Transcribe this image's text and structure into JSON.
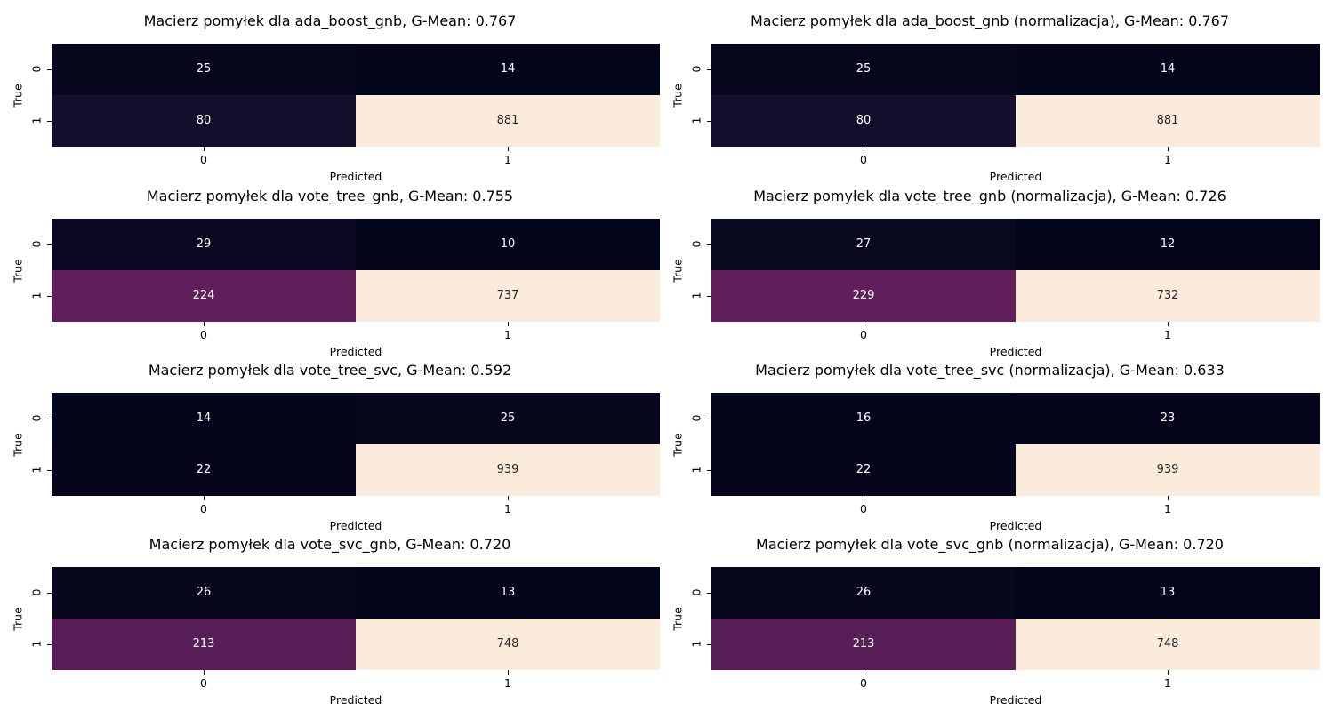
{
  "chart_data": [
    {
      "type": "heatmap",
      "title": "Macierz pomyłek dla ada_boost_gnb, G-Mean: 0.767",
      "xlabel": "Predicted",
      "ylabel": "True",
      "x_ticks": [
        "0",
        "1"
      ],
      "y_ticks": [
        "0",
        "1"
      ],
      "matrix": [
        [
          25,
          14
        ],
        [
          80,
          881
        ]
      ],
      "colormap": "rocket"
    },
    {
      "type": "heatmap",
      "title": "Macierz pomyłek dla ada_boost_gnb (normalizacja), G-Mean: 0.767",
      "xlabel": "Predicted",
      "ylabel": "True",
      "x_ticks": [
        "0",
        "1"
      ],
      "y_ticks": [
        "0",
        "1"
      ],
      "matrix": [
        [
          25,
          14
        ],
        [
          80,
          881
        ]
      ],
      "colormap": "rocket"
    },
    {
      "type": "heatmap",
      "title": "Macierz pomyłek dla vote_tree_gnb, G-Mean: 0.755",
      "xlabel": "Predicted",
      "ylabel": "True",
      "x_ticks": [
        "0",
        "1"
      ],
      "y_ticks": [
        "0",
        "1"
      ],
      "matrix": [
        [
          29,
          10
        ],
        [
          224,
          737
        ]
      ],
      "colormap": "rocket"
    },
    {
      "type": "heatmap",
      "title": "Macierz pomyłek dla vote_tree_gnb (normalizacja), G-Mean: 0.726",
      "xlabel": "Predicted",
      "ylabel": "True",
      "x_ticks": [
        "0",
        "1"
      ],
      "y_ticks": [
        "0",
        "1"
      ],
      "matrix": [
        [
          27,
          12
        ],
        [
          229,
          732
        ]
      ],
      "colormap": "rocket"
    },
    {
      "type": "heatmap",
      "title": "Macierz pomyłek dla vote_tree_svc, G-Mean: 0.592",
      "xlabel": "Predicted",
      "ylabel": "True",
      "x_ticks": [
        "0",
        "1"
      ],
      "y_ticks": [
        "0",
        "1"
      ],
      "matrix": [
        [
          14,
          25
        ],
        [
          22,
          939
        ]
      ],
      "colormap": "rocket"
    },
    {
      "type": "heatmap",
      "title": "Macierz pomyłek dla vote_tree_svc (normalizacja), G-Mean: 0.633",
      "xlabel": "Predicted",
      "ylabel": "True",
      "x_ticks": [
        "0",
        "1"
      ],
      "y_ticks": [
        "0",
        "1"
      ],
      "matrix": [
        [
          16,
          23
        ],
        [
          22,
          939
        ]
      ],
      "colormap": "rocket"
    },
    {
      "type": "heatmap",
      "title": "Macierz pomyłek dla vote_svc_gnb, G-Mean: 0.720",
      "xlabel": "Predicted",
      "ylabel": "True",
      "x_ticks": [
        "0",
        "1"
      ],
      "y_ticks": [
        "0",
        "1"
      ],
      "matrix": [
        [
          26,
          13
        ],
        [
          213,
          748
        ]
      ],
      "colormap": "rocket"
    },
    {
      "type": "heatmap",
      "title": "Macierz pomyłek dla vote_svc_gnb (normalizacja), G-Mean: 0.720",
      "xlabel": "Predicted",
      "ylabel": "True",
      "x_ticks": [
        "0",
        "1"
      ],
      "y_ticks": [
        "0",
        "1"
      ],
      "matrix": [
        [
          26,
          13
        ],
        [
          213,
          748
        ]
      ],
      "colormap": "rocket"
    }
  ]
}
